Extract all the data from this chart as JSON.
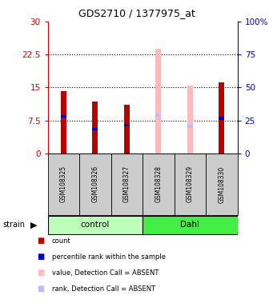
{
  "title": "GDS2710 / 1377975_at",
  "samples": [
    "GSM108325",
    "GSM108326",
    "GSM108327",
    "GSM108328",
    "GSM108329",
    "GSM108330"
  ],
  "groups": [
    "control",
    "control",
    "control",
    "Dahl",
    "Dahl",
    "Dahl"
  ],
  "group_labels": [
    "control",
    "Dahl"
  ],
  "group_colors": [
    "#bbffbb",
    "#44ee44"
  ],
  "ylim_left": [
    0,
    30
  ],
  "ylim_right": [
    0,
    100
  ],
  "yticks_left": [
    0,
    7.5,
    15,
    22.5,
    30
  ],
  "yticks_right": [
    0,
    25,
    50,
    75,
    100
  ],
  "ytick_labels_left": [
    "0",
    "7.5",
    "15",
    "22.5",
    "30"
  ],
  "ytick_labels_right": [
    "0",
    "25",
    "50",
    "75",
    "100%"
  ],
  "count_values": [
    14.2,
    11.8,
    11.0,
    null,
    null,
    16.2
  ],
  "percentile_values": [
    8.5,
    5.5,
    6.5,
    null,
    null,
    8.0
  ],
  "absent_value_values": [
    null,
    null,
    null,
    23.8,
    15.5,
    null
  ],
  "absent_rank_values": [
    null,
    null,
    null,
    8.7,
    6.2,
    null
  ],
  "bar_width": 0.18,
  "count_color": "#bb0000",
  "percentile_color": "#0000cc",
  "absent_value_color": "#ffbbbb",
  "absent_rank_color": "#bbbbff",
  "left_axis_color": "#cc0000",
  "right_axis_color": "#0000cc",
  "grid_color": "#000000",
  "sample_box_color": "#cccccc",
  "legend_items": [
    "count",
    "percentile rank within the sample",
    "value, Detection Call = ABSENT",
    "rank, Detection Call = ABSENT"
  ],
  "legend_colors": [
    "#bb0000",
    "#0000cc",
    "#ffbbbb",
    "#bbbbff"
  ]
}
